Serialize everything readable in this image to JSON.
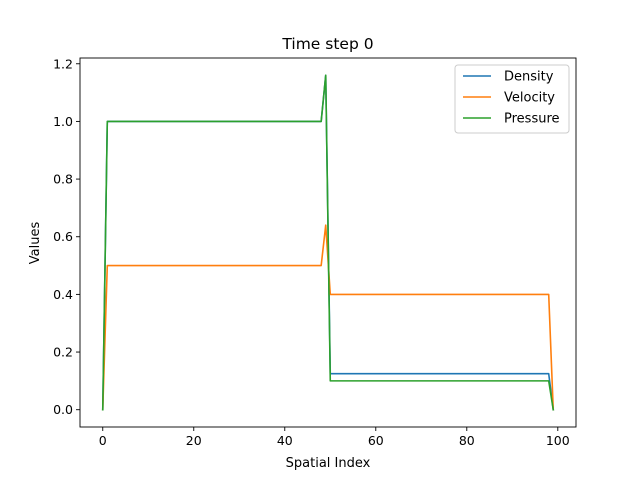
{
  "chart_data": {
    "type": "line",
    "title": "Time step 0",
    "xlabel": "Spatial Index",
    "ylabel": "Values",
    "xlim": [
      -5,
      104
    ],
    "ylim": [
      -0.06,
      1.22
    ],
    "xticks": [
      0,
      20,
      40,
      60,
      80,
      100
    ],
    "yticks": [
      0.0,
      0.2,
      0.4,
      0.6,
      0.8,
      1.0,
      1.2
    ],
    "xtick_labels": [
      "0",
      "20",
      "40",
      "60",
      "80",
      "100"
    ],
    "ytick_labels": [
      "0.0",
      "0.2",
      "0.4",
      "0.6",
      "0.8",
      "1.0",
      "1.2"
    ],
    "grid": false,
    "legend_position": "top-right",
    "series": [
      {
        "name": "Density",
        "color": "#1f77b4",
        "x": [
          0,
          1,
          48,
          49,
          50,
          98,
          99
        ],
        "y": [
          0.0,
          1.0,
          1.0,
          1.16,
          0.125,
          0.125,
          0.0
        ]
      },
      {
        "name": "Velocity",
        "color": "#ff7f0e",
        "x": [
          0,
          1,
          48,
          49,
          50,
          98,
          99
        ],
        "y": [
          0.0,
          0.5,
          0.5,
          0.64,
          0.4,
          0.4,
          0.0
        ]
      },
      {
        "name": "Pressure",
        "color": "#2ca02c",
        "x": [
          0,
          1,
          48,
          49,
          50,
          98,
          99
        ],
        "y": [
          0.0,
          1.0,
          1.0,
          1.16,
          0.1,
          0.1,
          0.0
        ]
      }
    ]
  }
}
